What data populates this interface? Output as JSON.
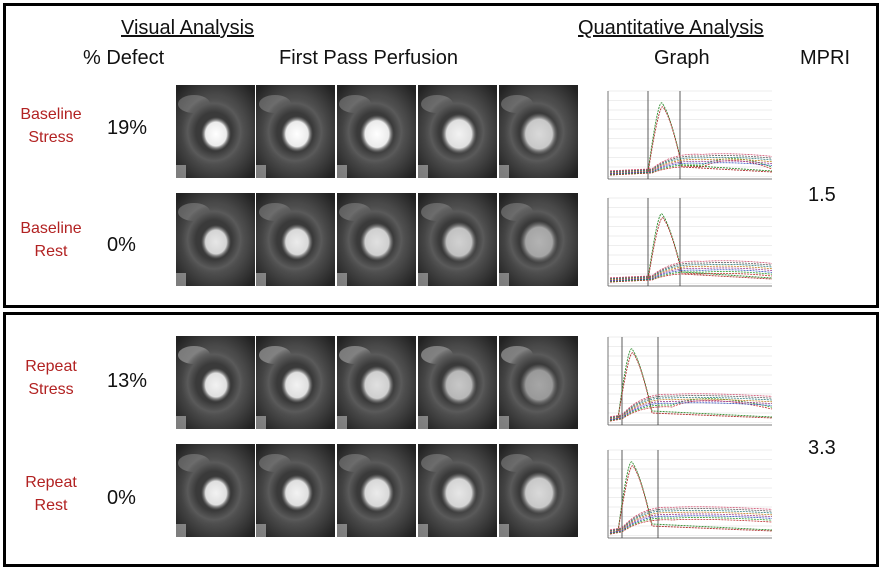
{
  "headers": {
    "visual_analysis": "Visual Analysis",
    "quantitative_analysis": "Quantitative Analysis",
    "defect": "% Defect",
    "first_pass": "First Pass Perfusion",
    "graph": "Graph",
    "mpri": "MPRI"
  },
  "rows": [
    {
      "label1": "Baseline",
      "label2": "Stress",
      "defect": "19%"
    },
    {
      "label1": "Baseline",
      "label2": "Rest",
      "defect": "0%"
    },
    {
      "label1": "Repeat",
      "label2": "Stress",
      "defect": "13%"
    },
    {
      "label1": "Repeat",
      "label2": "Rest",
      "defect": "0%"
    }
  ],
  "mpri_values": {
    "baseline": "1.5",
    "repeat": "3.3"
  },
  "colors": {
    "row_label": "#b22222",
    "border": "#000000"
  }
}
